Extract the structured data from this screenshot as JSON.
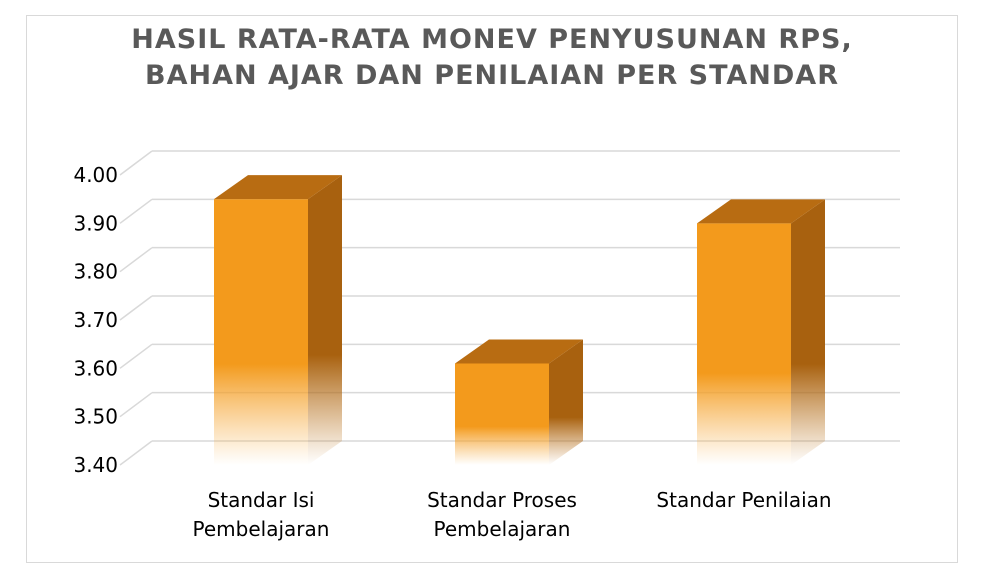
{
  "chart_data": {
    "type": "bar",
    "title_lines": [
      "HASIL RATA-RATA MONEV PENYUSUNAN RPS,",
      "BAHAN AJAR DAN PENILAIAN PER STANDAR"
    ],
    "categories": [
      [
        "Standar Isi",
        "Pembelajaran"
      ],
      [
        "Standar Proses",
        "Pembelajaran"
      ],
      [
        "Standar Penilaian"
      ]
    ],
    "values": [
      3.95,
      3.61,
      3.9
    ],
    "ylim": [
      3.4,
      4.0
    ],
    "yticks": [
      "3.40",
      "3.50",
      "3.60",
      "3.70",
      "3.80",
      "3.90",
      "4.00"
    ],
    "grid": true,
    "colors": {
      "front": "#f39a1c",
      "side": "#a8610f",
      "top": "#b86c12",
      "grid": "#d9d9d9"
    }
  }
}
